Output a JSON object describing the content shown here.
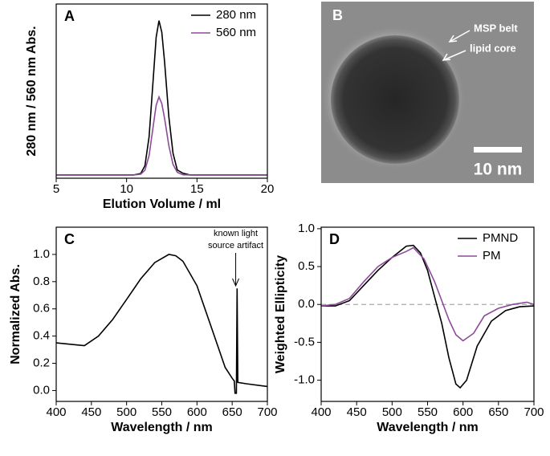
{
  "chart_data": [
    {
      "type": "line",
      "panel_label": "A",
      "x_label": "Elution Volume / ml",
      "y_label": "280 nm / 560 nm Abs.",
      "x": [
        5,
        8,
        10,
        10.5,
        11,
        11.3,
        11.6,
        11.9,
        12.1,
        12.3,
        12.5,
        12.7,
        13,
        13.3,
        13.6,
        14,
        14.5,
        15,
        16,
        18,
        20
      ],
      "series": [
        {
          "name": "280 nm",
          "color": "#000000",
          "values": [
            0.02,
            0.02,
            0.02,
            0.02,
            0.028,
            0.075,
            0.25,
            0.61,
            0.85,
            0.95,
            0.88,
            0.7,
            0.37,
            0.15,
            0.05,
            0.03,
            0.02,
            0.02,
            0.02,
            0.02,
            0.02
          ]
        },
        {
          "name": "560 nm",
          "color": "#8e4a9a",
          "values": [
            0.02,
            0.02,
            0.02,
            0.02,
            0.024,
            0.048,
            0.137,
            0.32,
            0.44,
            0.49,
            0.45,
            0.36,
            0.196,
            0.083,
            0.036,
            0.021,
            0.02,
            0.02,
            0.02,
            0.02,
            0.02
          ]
        }
      ],
      "xlim": [
        5,
        20
      ],
      "xticks": [
        5,
        10,
        15,
        20
      ],
      "ylim": [
        0,
        1.05
      ],
      "legend": "upper right"
    },
    {
      "type": "image",
      "panel_label": "B",
      "annotations": [
        "MSP belt",
        "lipid core"
      ],
      "scale_bar": "10 nm"
    },
    {
      "type": "line",
      "panel_label": "C",
      "x_label": "Wavelength / nm",
      "y_label": "Normalized Abs.",
      "annotation": [
        "known light",
        "source artifact"
      ],
      "x": [
        400,
        420,
        440,
        460,
        480,
        500,
        520,
        540,
        560,
        570,
        580,
        600,
        620,
        640,
        650,
        653,
        654,
        656,
        657,
        658,
        670,
        700
      ],
      "values": [
        0.35,
        0.34,
        0.33,
        0.4,
        0.52,
        0.67,
        0.82,
        0.94,
        1.0,
        0.99,
        0.95,
        0.77,
        0.47,
        0.17,
        0.09,
        0.07,
        -0.02,
        -0.02,
        0.75,
        0.06,
        0.05,
        0.03
      ],
      "color": "#000000",
      "xlim": [
        400,
        700
      ],
      "xticks": [
        400,
        450,
        500,
        550,
        600,
        650,
        700
      ],
      "ylim": [
        -0.08,
        1.2
      ],
      "yticks": [
        {
          "value": 0,
          "label": "0.0"
        },
        0.2,
        0.4,
        0.6,
        0.8,
        {
          "value": 1,
          "label": "1.0"
        }
      ]
    },
    {
      "type": "line",
      "panel_label": "D",
      "x_label": "Wavelength / nm",
      "y_label": "Weighted Ellipticity",
      "series": [
        {
          "name": "PMND",
          "color": "#000000",
          "x": [
            400,
            420,
            440,
            460,
            480,
            500,
            520,
            530,
            540,
            550,
            560,
            570,
            580,
            590,
            596,
            605,
            620,
            640,
            660,
            680,
            700
          ],
          "values": [
            -0.02,
            -0.02,
            0.05,
            0.25,
            0.45,
            0.62,
            0.77,
            0.78,
            0.68,
            0.45,
            0.1,
            -0.25,
            -0.7,
            -1.05,
            -1.1,
            -1.0,
            -0.55,
            -0.22,
            -0.08,
            -0.03,
            -0.02
          ]
        },
        {
          "name": "PM",
          "color": "#8e4a9a",
          "x": [
            400,
            420,
            440,
            460,
            480,
            500,
            520,
            530,
            545,
            560,
            570,
            580,
            590,
            600,
            615,
            630,
            650,
            670,
            690,
            700
          ],
          "values": [
            -0.02,
            0.0,
            0.08,
            0.3,
            0.5,
            0.62,
            0.7,
            0.75,
            0.6,
            0.3,
            0.05,
            -0.2,
            -0.4,
            -0.48,
            -0.38,
            -0.15,
            -0.05,
            0.0,
            0.03,
            0.0
          ]
        }
      ],
      "hline": 0,
      "xlim": [
        400,
        700
      ],
      "xticks": [
        400,
        450,
        500,
        550,
        600,
        650,
        700
      ],
      "ylim": [
        -1.28,
        1.02
      ],
      "yticks": [
        {
          "value": -1,
          "label": "-1.0"
        },
        -0.5,
        {
          "value": 0,
          "label": "0.0"
        },
        0.5,
        {
          "value": 1,
          "label": "1.0"
        }
      ],
      "legend": "upper right"
    }
  ]
}
